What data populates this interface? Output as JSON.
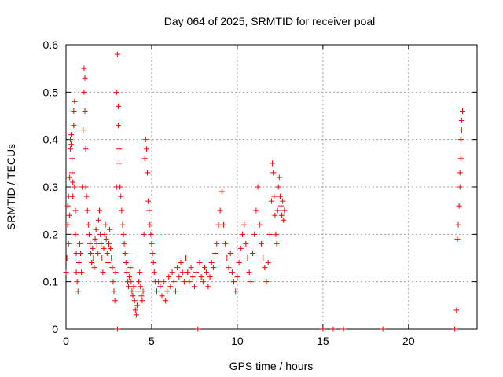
{
  "chart_data": {
    "type": "scatter",
    "title": "Day 064 of 2025, SRMTID for receiver poal",
    "xlabel": "GPS time / hours",
    "ylabel": "SRMTID / TECUs",
    "xlim": [
      0,
      24
    ],
    "ylim": [
      0,
      0.6
    ],
    "xticks": [
      0,
      5,
      10,
      15,
      20
    ],
    "xtick_labels": [
      "0",
      "5",
      "10",
      "15",
      "20"
    ],
    "yticks": [
      0,
      0.1,
      0.2,
      0.3,
      0.4,
      0.5,
      0.6
    ],
    "ytick_labels": [
      "0",
      "0.1",
      "0.2",
      "0.3",
      "0.4",
      "0.5",
      "0.6"
    ],
    "grid": true,
    "marker": "+",
    "colors": {
      "series": "#ff0000",
      "grid": "#a0a0a0",
      "axes": "#000000"
    },
    "series": [
      {
        "name": "SRMTID",
        "points": [
          [
            0.0,
            0.12
          ],
          [
            0.05,
            0.15
          ],
          [
            0.1,
            0.22
          ],
          [
            0.1,
            0.26
          ],
          [
            0.15,
            0.28
          ],
          [
            0.15,
            0.18
          ],
          [
            0.2,
            0.24
          ],
          [
            0.2,
            0.32
          ],
          [
            0.25,
            0.38
          ],
          [
            0.25,
            0.4
          ],
          [
            0.3,
            0.39
          ],
          [
            0.3,
            0.41
          ],
          [
            0.35,
            0.36
          ],
          [
            0.35,
            0.33
          ],
          [
            0.4,
            0.31
          ],
          [
            0.4,
            0.28
          ],
          [
            0.45,
            0.43
          ],
          [
            0.45,
            0.46
          ],
          [
            0.5,
            0.48
          ],
          [
            0.5,
            0.3
          ],
          [
            0.55,
            0.25
          ],
          [
            0.55,
            0.2
          ],
          [
            0.6,
            0.16
          ],
          [
            0.6,
            0.12
          ],
          [
            0.65,
            0.1
          ],
          [
            0.7,
            0.08
          ],
          [
            0.75,
            0.14
          ],
          [
            0.8,
            0.18
          ],
          [
            0.85,
            0.16
          ],
          [
            0.9,
            0.12
          ],
          [
            0.95,
            0.3
          ],
          [
            1.0,
            0.42
          ],
          [
            1.05,
            0.5
          ],
          [
            1.05,
            0.55
          ],
          [
            1.1,
            0.53
          ],
          [
            1.1,
            0.46
          ],
          [
            1.15,
            0.38
          ],
          [
            1.15,
            0.3
          ],
          [
            1.2,
            0.28
          ],
          [
            1.25,
            0.25
          ],
          [
            1.3,
            0.22
          ],
          [
            1.35,
            0.2
          ],
          [
            1.4,
            0.18
          ],
          [
            1.45,
            0.16
          ],
          [
            1.5,
            0.14
          ],
          [
            1.55,
            0.17
          ],
          [
            1.6,
            0.15
          ],
          [
            1.65,
            0.13
          ],
          [
            1.7,
            0.19
          ],
          [
            1.75,
            0.21
          ],
          [
            1.8,
            0.18
          ],
          [
            1.85,
            0.16
          ],
          [
            1.9,
            0.23
          ],
          [
            1.95,
            0.25
          ],
          [
            2.0,
            0.2
          ],
          [
            2.05,
            0.18
          ],
          [
            2.1,
            0.15
          ],
          [
            2.15,
            0.12
          ],
          [
            2.2,
            0.17
          ],
          [
            2.25,
            0.2
          ],
          [
            2.3,
            0.22
          ],
          [
            2.35,
            0.19
          ],
          [
            2.4,
            0.16
          ],
          [
            2.45,
            0.14
          ],
          [
            2.5,
            0.18
          ],
          [
            2.55,
            0.21
          ],
          [
            2.6,
            0.17
          ],
          [
            2.65,
            0.15
          ],
          [
            2.7,
            0.13
          ],
          [
            2.75,
            0.1
          ],
          [
            2.8,
            0.08
          ],
          [
            2.85,
            0.06
          ],
          [
            2.9,
            0.12
          ],
          [
            2.95,
            0.3
          ],
          [
            2.95,
            0.5
          ],
          [
            3.0,
            0.58
          ],
          [
            3.0,
            0.0
          ],
          [
            3.05,
            0.47
          ],
          [
            3.05,
            0.43
          ],
          [
            3.1,
            0.38
          ],
          [
            3.1,
            0.35
          ],
          [
            3.15,
            0.3
          ],
          [
            3.2,
            0.28
          ],
          [
            3.25,
            0.25
          ],
          [
            3.3,
            0.22
          ],
          [
            3.35,
            0.2
          ],
          [
            3.4,
            0.18
          ],
          [
            3.45,
            0.16
          ],
          [
            3.5,
            0.14
          ],
          [
            3.55,
            0.12
          ],
          [
            3.6,
            0.1
          ],
          [
            3.65,
            0.09
          ],
          [
            3.7,
            0.11
          ],
          [
            3.75,
            0.13
          ],
          [
            3.8,
            0.1
          ],
          [
            3.85,
            0.08
          ],
          [
            3.9,
            0.07
          ],
          [
            3.95,
            0.09
          ],
          [
            4.0,
            0.06
          ],
          [
            4.05,
            0.04
          ],
          [
            4.1,
            0.03
          ],
          [
            4.15,
            0.05
          ],
          [
            4.2,
            0.08
          ],
          [
            4.25,
            0.1
          ],
          [
            4.3,
            0.12
          ],
          [
            4.35,
            0.09
          ],
          [
            4.4,
            0.07
          ],
          [
            4.45,
            0.06
          ],
          [
            4.5,
            0.08
          ],
          [
            4.55,
            0.2
          ],
          [
            4.6,
            0.36
          ],
          [
            4.65,
            0.4
          ],
          [
            4.7,
            0.38
          ],
          [
            4.75,
            0.33
          ],
          [
            4.8,
            0.27
          ],
          [
            4.85,
            0.25
          ],
          [
            4.9,
            0.22
          ],
          [
            4.95,
            0.2
          ],
          [
            5.0,
            0.18
          ],
          [
            5.05,
            0.16
          ],
          [
            5.1,
            0.14
          ],
          [
            5.15,
            0.12
          ],
          [
            5.2,
            0.1
          ],
          [
            5.3,
            0.08
          ],
          [
            5.4,
            0.1
          ],
          [
            5.5,
            0.09
          ],
          [
            5.6,
            0.07
          ],
          [
            5.7,
            0.1
          ],
          [
            5.8,
            0.06
          ],
          [
            5.9,
            0.08
          ],
          [
            6.0,
            0.11
          ],
          [
            6.1,
            0.09
          ],
          [
            6.2,
            0.12
          ],
          [
            6.3,
            0.1
          ],
          [
            6.4,
            0.08
          ],
          [
            6.5,
            0.13
          ],
          [
            6.6,
            0.11
          ],
          [
            6.7,
            0.14
          ],
          [
            6.8,
            0.12
          ],
          [
            6.9,
            0.1
          ],
          [
            7.0,
            0.15
          ],
          [
            7.1,
            0.12
          ],
          [
            7.2,
            0.1
          ],
          [
            7.3,
            0.13
          ],
          [
            7.4,
            0.11
          ],
          [
            7.5,
            0.09
          ],
          [
            7.6,
            0.12
          ],
          [
            7.7,
            0.0
          ],
          [
            7.8,
            0.14
          ],
          [
            7.9,
            0.11
          ],
          [
            8.0,
            0.1
          ],
          [
            8.1,
            0.13
          ],
          [
            8.2,
            0.12
          ],
          [
            8.3,
            0.09
          ],
          [
            8.4,
            0.11
          ],
          [
            8.5,
            0.14
          ],
          [
            8.6,
            0.13
          ],
          [
            8.7,
            0.16
          ],
          [
            8.8,
            0.18
          ],
          [
            8.9,
            0.22
          ],
          [
            9.0,
            0.25
          ],
          [
            9.1,
            0.29
          ],
          [
            9.2,
            0.22
          ],
          [
            9.3,
            0.18
          ],
          [
            9.4,
            0.15
          ],
          [
            9.5,
            0.13
          ],
          [
            9.6,
            0.16
          ],
          [
            9.7,
            0.12
          ],
          [
            9.8,
            0.1
          ],
          [
            9.9,
            0.08
          ],
          [
            10.0,
            0.11
          ],
          [
            10.1,
            0.14
          ],
          [
            10.2,
            0.17
          ],
          [
            10.3,
            0.2
          ],
          [
            10.4,
            0.22
          ],
          [
            10.5,
            0.18
          ],
          [
            10.6,
            0.15
          ],
          [
            10.7,
            0.12
          ],
          [
            10.8,
            0.1
          ],
          [
            10.9,
            0.16
          ],
          [
            11.0,
            0.2
          ],
          [
            11.1,
            0.25
          ],
          [
            11.2,
            0.3
          ],
          [
            11.3,
            0.22
          ],
          [
            11.4,
            0.18
          ],
          [
            11.5,
            0.15
          ],
          [
            11.6,
            0.13
          ],
          [
            11.7,
            0.1
          ],
          [
            11.8,
            0.14
          ],
          [
            11.9,
            0.2
          ],
          [
            12.0,
            0.27
          ],
          [
            12.05,
            0.35
          ],
          [
            12.1,
            0.33
          ],
          [
            12.15,
            0.28
          ],
          [
            12.2,
            0.24
          ],
          [
            12.25,
            0.2
          ],
          [
            12.3,
            0.18
          ],
          [
            12.35,
            0.25
          ],
          [
            12.4,
            0.3
          ],
          [
            12.45,
            0.32
          ],
          [
            12.5,
            0.28
          ],
          [
            12.55,
            0.26
          ],
          [
            12.6,
            0.24
          ],
          [
            12.65,
            0.27
          ],
          [
            12.7,
            0.23
          ],
          [
            12.75,
            0.25
          ],
          [
            15.0,
            0.0
          ],
          [
            15.6,
            0.0
          ],
          [
            16.2,
            0.0
          ],
          [
            18.5,
            0.0
          ],
          [
            22.7,
            0.0
          ],
          [
            22.8,
            0.04
          ],
          [
            22.85,
            0.19
          ],
          [
            22.9,
            0.22
          ],
          [
            22.95,
            0.26
          ],
          [
            23.0,
            0.3
          ],
          [
            23.0,
            0.33
          ],
          [
            23.05,
            0.36
          ],
          [
            23.05,
            0.4
          ],
          [
            23.1,
            0.42
          ],
          [
            23.1,
            0.44
          ],
          [
            23.15,
            0.46
          ]
        ]
      }
    ]
  }
}
